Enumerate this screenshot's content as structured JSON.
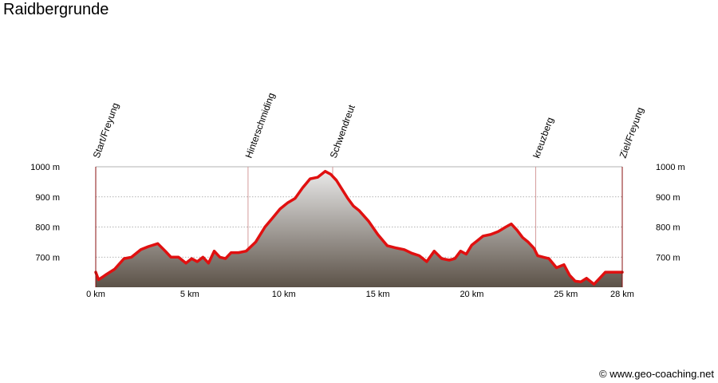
{
  "title": "Raidbergrunde",
  "credit": "© www.geo-coaching.net",
  "chart_data": {
    "type": "area",
    "title": "Raidbergrunde",
    "xlabel": "",
    "ylabel": "",
    "xlim": [
      0,
      28
    ],
    "ylim": [
      600,
      1000
    ],
    "x_unit": "km",
    "y_unit": "m",
    "x_ticks": [
      {
        "value": 0,
        "label": "0 km"
      },
      {
        "value": 5,
        "label": "5 km"
      },
      {
        "value": 10,
        "label": "10 km"
      },
      {
        "value": 15,
        "label": "15 km"
      },
      {
        "value": 20,
        "label": "20 km"
      },
      {
        "value": 25,
        "label": "25 km"
      },
      {
        "value": 28,
        "label": "28 km"
      }
    ],
    "y_ticks": [
      {
        "value": 700,
        "label": "700 m"
      },
      {
        "value": 800,
        "label": "800 m"
      },
      {
        "value": 900,
        "label": "900 m"
      },
      {
        "value": 1000,
        "label": "1000 m"
      }
    ],
    "grid": true,
    "line_color": "#e01010",
    "fill_top_color": "#e8e8e8",
    "fill_bottom_color": "#5c5248",
    "waypoints": [
      {
        "name": "Start/Freyung",
        "km": 0
      },
      {
        "name": "Hinterschmiding",
        "km": 8.1
      },
      {
        "name": "Schwendreut",
        "km": 12.6
      },
      {
        "name": "kreuzberg",
        "km": 23.4
      },
      {
        "name": "Ziel/Freyung",
        "km": 28
      }
    ],
    "series": [
      {
        "x": [
          0,
          0.15,
          0.5,
          1,
          1.5,
          1.9,
          2.4,
          2.8,
          3.3,
          3.7,
          4,
          4.4,
          4.8,
          5.1,
          5.4,
          5.7,
          6,
          6.3,
          6.6,
          6.9,
          7.2,
          7.6,
          8,
          8.5,
          9,
          9.4,
          9.8,
          10.2,
          10.6,
          11,
          11.4,
          11.8,
          12.2,
          12.5,
          12.8,
          13.1,
          13.4,
          13.7,
          14,
          14.5,
          15,
          15.5,
          16,
          16.4,
          16.8,
          17.2,
          17.6,
          18,
          18.4,
          18.8,
          19.1,
          19.4,
          19.7,
          20,
          20.3,
          20.6,
          21,
          21.4,
          21.8,
          22.1,
          22.4,
          22.7,
          23,
          23.3,
          23.5,
          23.8,
          24.1,
          24.5,
          24.9,
          25.2,
          25.5,
          25.8,
          26.1,
          26.5,
          26.8,
          27.1,
          27.4,
          27.7,
          28
        ],
        "y": [
          650,
          625,
          640,
          660,
          695,
          700,
          725,
          735,
          745,
          720,
          700,
          700,
          680,
          695,
          685,
          700,
          680,
          720,
          700,
          695,
          715,
          715,
          720,
          750,
          800,
          830,
          860,
          880,
          895,
          930,
          960,
          965,
          985,
          975,
          955,
          925,
          895,
          870,
          855,
          820,
          775,
          738,
          730,
          725,
          713,
          705,
          685,
          720,
          695,
          690,
          695,
          720,
          710,
          740,
          755,
          770,
          775,
          785,
          800,
          810,
          790,
          765,
          750,
          730,
          705,
          700,
          695,
          665,
          675,
          640,
          620,
          618,
          630,
          610,
          630,
          650,
          650,
          650,
          650
        ]
      }
    ]
  }
}
